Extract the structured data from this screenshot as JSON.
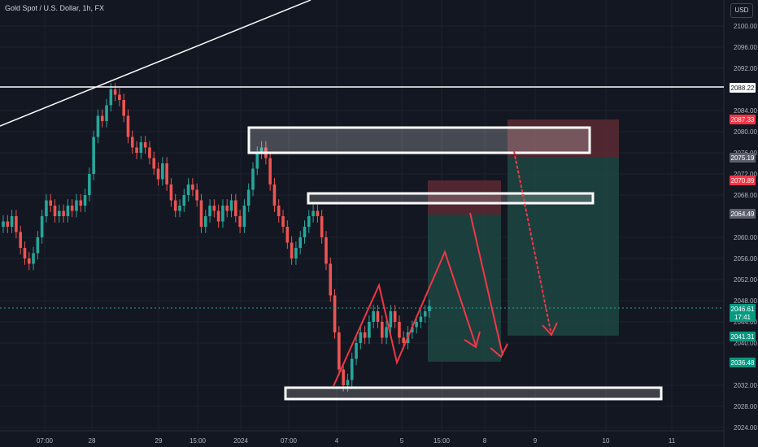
{
  "header": {
    "symbol_title": "Gold Spot / U.S. Dollar, 1h, FX",
    "currency_button": "USD"
  },
  "colors": {
    "background": "#131722",
    "up_candle": "#26a69a",
    "down_candle": "#ef5350",
    "drawing_white": "#ffffff",
    "arrow_red": "#f23645",
    "zone_green": "#1f4e47",
    "zone_red": "#5c2a33"
  },
  "price_axis": {
    "ticks": [
      "2100.00",
      "2096.00",
      "2092.00",
      "2084.00",
      "2080.00",
      "2076.00",
      "2072.00",
      "2068.00",
      "2060.00",
      "2056.00",
      "2052.00",
      "2048.00",
      "2044.00",
      "2040.00",
      "2032.00",
      "2028.00",
      "2024.00"
    ]
  },
  "price_labels": [
    {
      "text": "2088.22",
      "style": "white"
    },
    {
      "text": "2087.33",
      "style": "red"
    },
    {
      "text": "2075.19",
      "style": "gray"
    },
    {
      "text": "2070.89",
      "style": "red"
    },
    {
      "text": "2064.49",
      "style": "gray"
    },
    {
      "text": "2046.61",
      "sub": "17:41",
      "style": "green"
    },
    {
      "text": "2041.31",
      "style": "green"
    },
    {
      "text": "2036.48",
      "style": "green"
    }
  ],
  "time_axis": {
    "ticks": [
      "07:00",
      "28",
      "29",
      "15:00",
      "2024",
      "07:00",
      "4",
      "5",
      "15:00",
      "8",
      "9",
      "10",
      "11"
    ]
  },
  "chart_data": {
    "type": "candlestick",
    "title": "Gold Spot / U.S. Dollar, 1h, FX",
    "ylim": [
      2022,
      2104
    ],
    "horizontal_line": 2088.22,
    "current_price": 2046.61,
    "countdown": "17:41",
    "close_series": [
      2063,
      2062,
      2064,
      2061,
      2058,
      2056,
      2055,
      2057,
      2060,
      2064,
      2067,
      2066,
      2064,
      2065,
      2064,
      2066,
      2065,
      2067,
      2066,
      2068,
      2072,
      2079,
      2083,
      2082,
      2085,
      2088,
      2087,
      2086,
      2083,
      2079,
      2077,
      2076,
      2078,
      2077,
      2075,
      2073,
      2071,
      2074,
      2070,
      2067,
      2065,
      2066,
      2068,
      2070,
      2069,
      2067,
      2062,
      2064,
      2066,
      2065,
      2063,
      2066,
      2065,
      2067,
      2064,
      2062,
      2066,
      2069,
      2073,
      2076,
      2077,
      2075,
      2070,
      2066,
      2064,
      2062,
      2059,
      2056,
      2058,
      2060,
      2062,
      2064,
      2065,
      2064,
      2060,
      2055,
      2049,
      2042,
      2035,
      2032,
      2033,
      2037,
      2040,
      2042,
      2041,
      2044,
      2046,
      2044,
      2041,
      2043,
      2046,
      2044,
      2041,
      2040,
      2042,
      2043,
      2044,
      2045,
      2046,
      2047
    ],
    "zones": [
      {
        "kind": "short-position",
        "entry": 2064.49,
        "stop": 2070.89,
        "target": 2036.48
      },
      {
        "kind": "short-position",
        "entry": 2075.19,
        "stop": 2082.5,
        "target": 2041.31
      }
    ]
  }
}
